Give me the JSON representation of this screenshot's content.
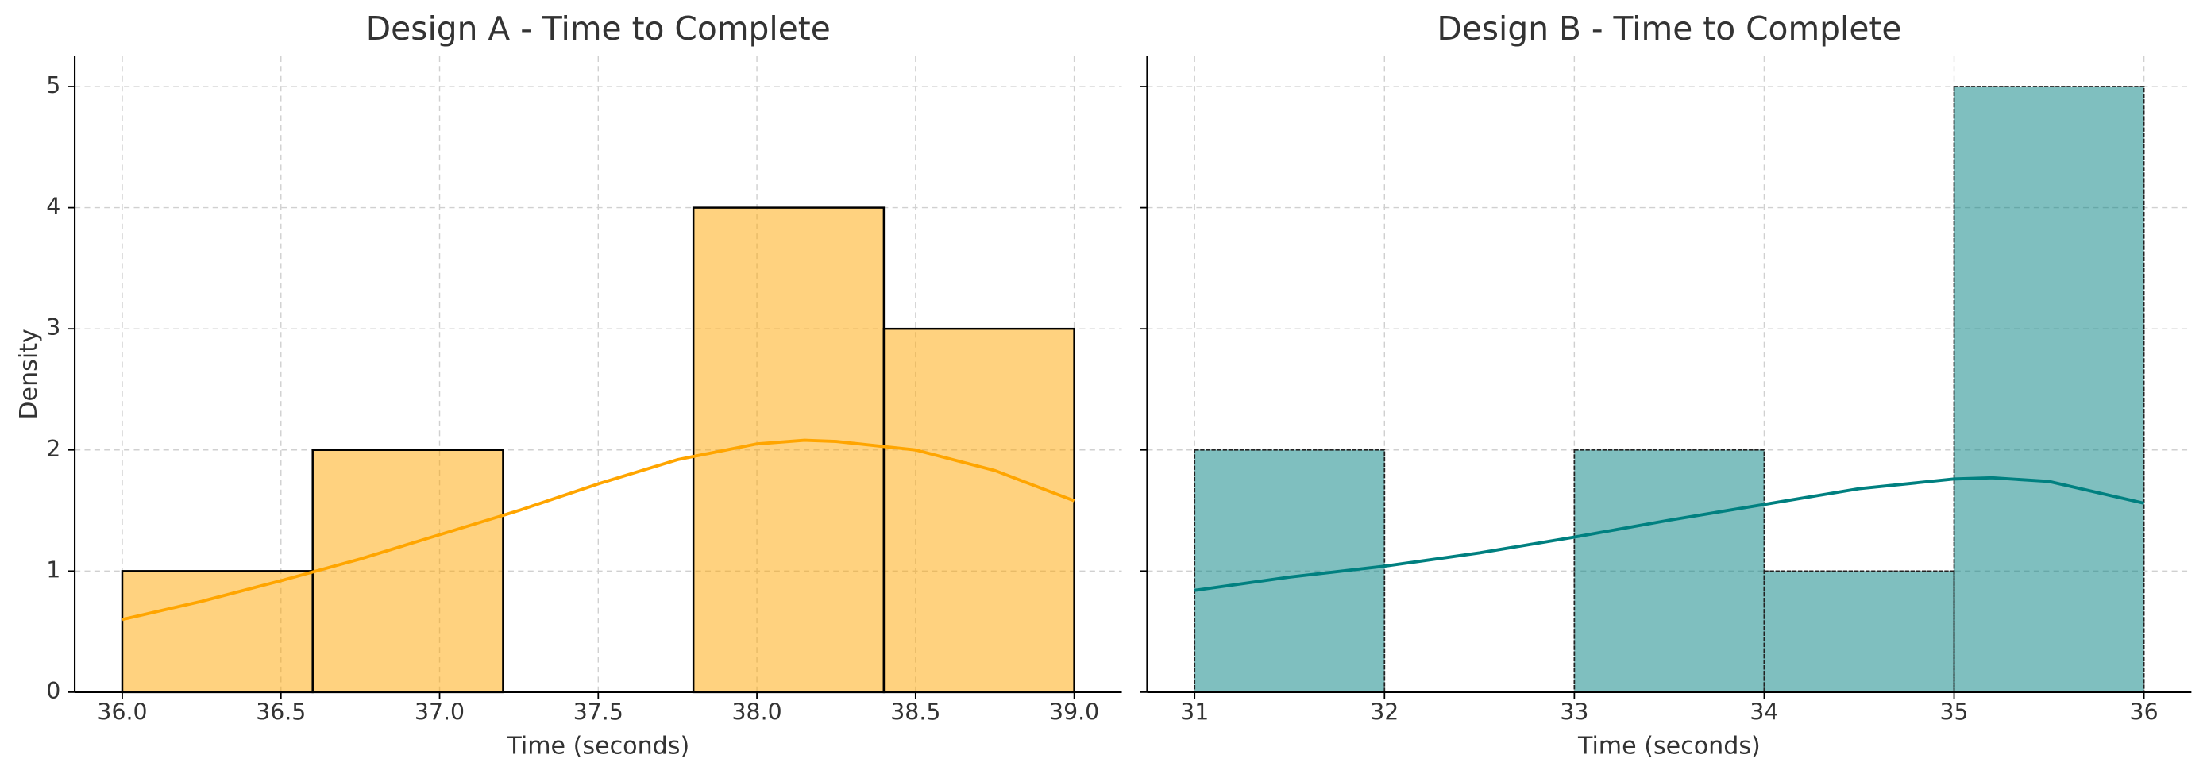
{
  "chart_data": [
    {
      "type": "histogram",
      "title": "Design A - Time to Complete",
      "xlabel": "Time (seconds)",
      "ylabel": "Density",
      "bins": [
        36.0,
        36.6,
        37.2,
        37.8,
        38.4,
        39.0
      ],
      "values": [
        1,
        2,
        0,
        4,
        3
      ],
      "color": "#ffa500",
      "line": {
        "x": [
          36.0,
          36.25,
          36.5,
          36.75,
          37.0,
          37.25,
          37.5,
          37.75,
          38.0,
          38.15,
          38.25,
          38.5,
          38.75,
          39.0
        ],
        "values": [
          0.6,
          0.75,
          0.92,
          1.1,
          1.3,
          1.5,
          1.72,
          1.92,
          2.05,
          2.08,
          2.07,
          2.0,
          1.83,
          1.58
        ],
        "color": "#ffa500"
      },
      "xlim": [
        35.85,
        39.15
      ],
      "ylim": [
        0,
        5.25
      ],
      "xticks": [
        {
          "value": 36,
          "label": "36.0"
        },
        36.5,
        {
          "value": 37,
          "label": "37.0"
        },
        37.5,
        {
          "value": 38,
          "label": "38.0"
        },
        38.5,
        {
          "value": 39,
          "label": "39.0"
        }
      ],
      "yticks": [
        0,
        1,
        2,
        3,
        4,
        5
      ],
      "grid": true
    },
    {
      "type": "histogram",
      "title": "Design B - Time to Complete",
      "xlabel": "Time (seconds)",
      "bins": [
        31,
        32,
        33,
        34,
        35,
        36
      ],
      "values": [
        2,
        0,
        2,
        1,
        5
      ],
      "color": "#008080",
      "line": {
        "x": [
          31,
          31.5,
          32,
          32.5,
          33,
          33.5,
          34,
          34.5,
          35,
          35.2,
          35.5,
          36
        ],
        "values": [
          0.84,
          0.95,
          1.04,
          1.15,
          1.28,
          1.42,
          1.55,
          1.68,
          1.76,
          1.77,
          1.74,
          1.56
        ],
        "color": "#008080"
      },
      "xlim": [
        30.75,
        36.25
      ],
      "ylim": [
        0,
        5.25
      ],
      "xticks": [
        31,
        32,
        33,
        34,
        35,
        36
      ],
      "grid": true
    }
  ]
}
